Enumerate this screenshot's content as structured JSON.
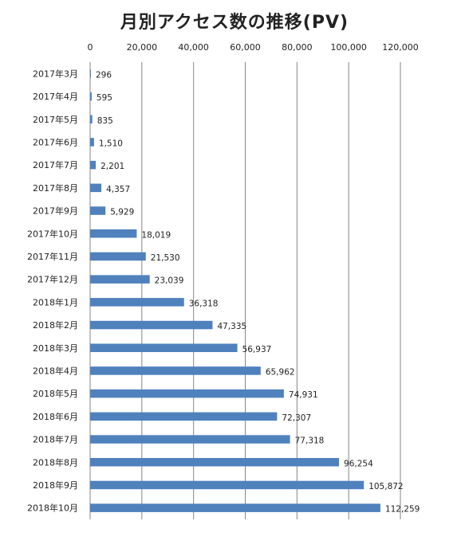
{
  "chart_data": {
    "type": "bar",
    "orientation": "horizontal",
    "title": "月別アクセス数の推移(PV)",
    "categories": [
      "2017年3月",
      "2017年4月",
      "2017年5月",
      "2017年6月",
      "2017年7月",
      "2017年8月",
      "2017年9月",
      "2017年10月",
      "2017年11月",
      "2017年12月",
      "2018年1月",
      "2018年2月",
      "2018年3月",
      "2018年4月",
      "2018年5月",
      "2018年6月",
      "2018年7月",
      "2018年8月",
      "2018年9月",
      "2018年10月"
    ],
    "values": [
      296,
      595,
      835,
      1510,
      2201,
      4357,
      5929,
      18019,
      21530,
      23039,
      36318,
      47335,
      56937,
      65962,
      74931,
      72307,
      77318,
      96254,
      105872,
      112259
    ],
    "value_labels": [
      "296",
      "595",
      "835",
      "1,510",
      "2,201",
      "4,357",
      "5,929",
      "18,019",
      "21,530",
      "23,039",
      "36,318",
      "47,335",
      "56,937",
      "65,962",
      "74,931",
      "72,307",
      "77,318",
      "96,254",
      "105,872",
      "112,259"
    ],
    "xlim": [
      0,
      120000
    ],
    "ticks": [
      0,
      20000,
      40000,
      60000,
      80000,
      100000,
      120000
    ],
    "tick_labels": [
      "0",
      "20,000",
      "40,000",
      "60,000",
      "80,000",
      "100,000",
      "120,000"
    ],
    "axis_position": "top",
    "grid": true,
    "legend": "none",
    "bar_color": "#4f81bd",
    "grid_color": "#868686"
  }
}
